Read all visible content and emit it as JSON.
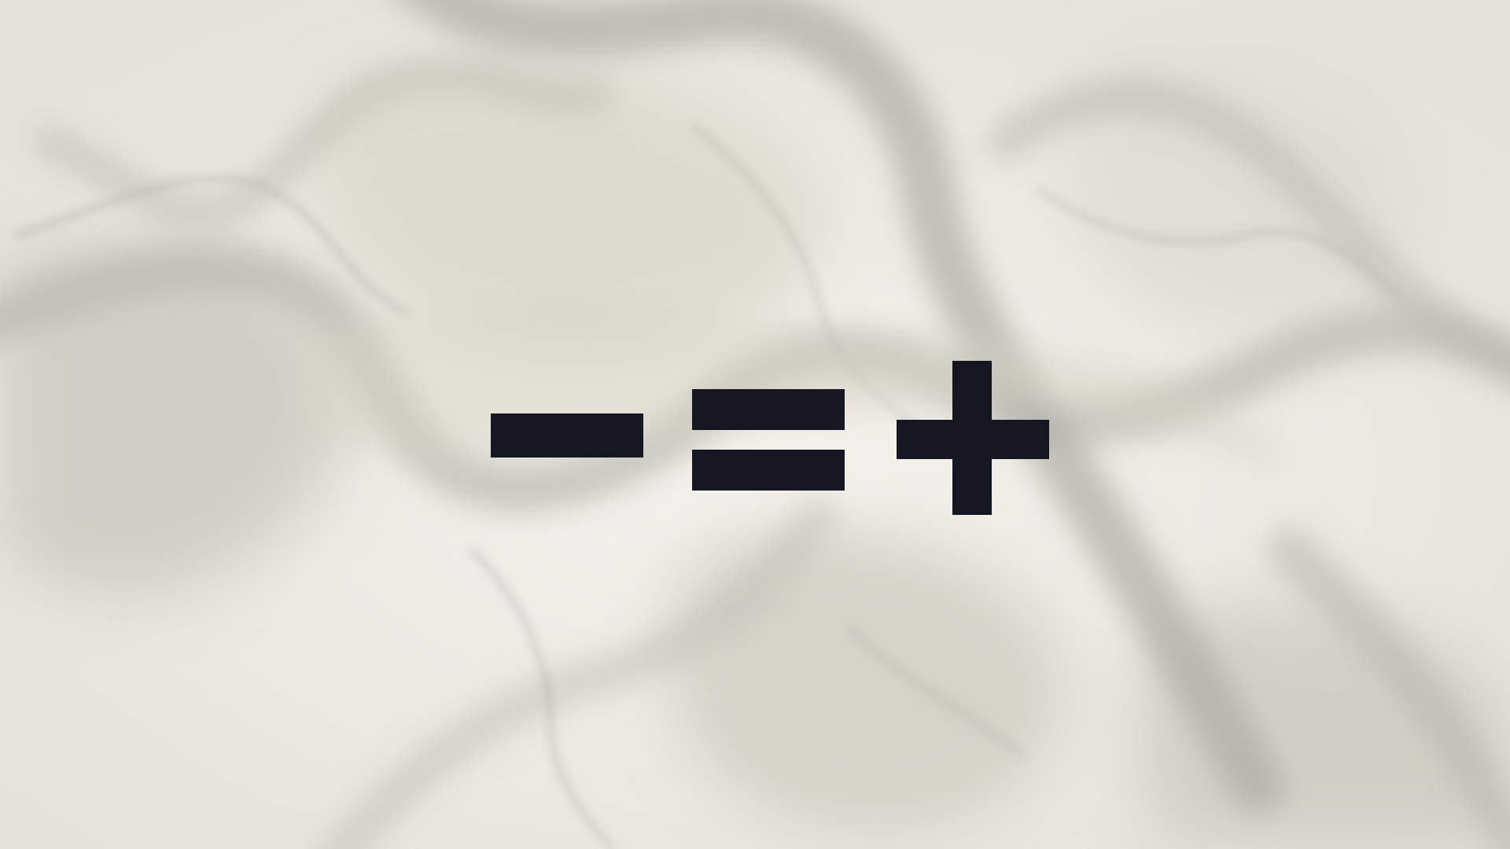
{
  "scene": {
    "background_description_colors": {
      "base": "#ecebe4",
      "smoke_light": "#d9d6cb",
      "smoke_mid": "#c4c2b8",
      "smoke_dark": "#a9a9a3",
      "glyph": "#141621"
    },
    "logo": {
      "symbols": [
        "minus-icon",
        "equals-icon",
        "plus-icon"
      ]
    }
  }
}
